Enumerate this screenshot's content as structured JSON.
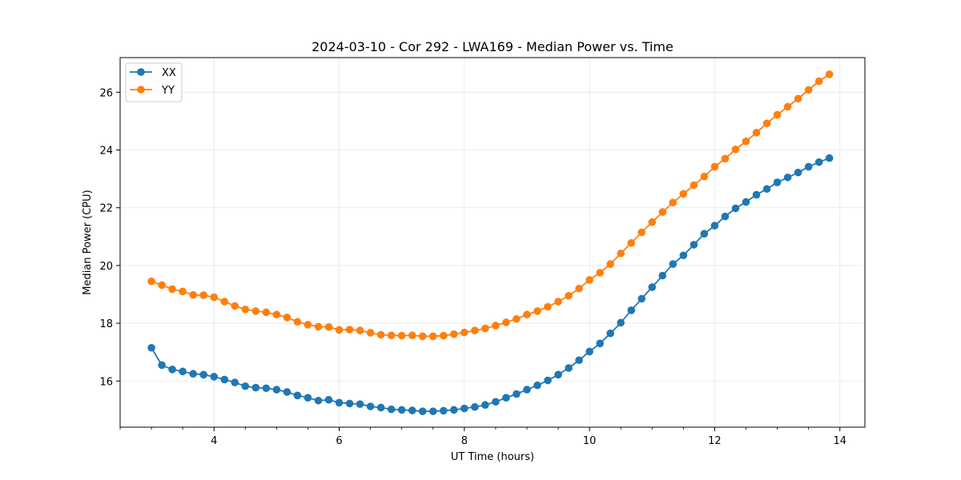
{
  "chart_data": {
    "type": "line",
    "title": "2024-03-10 - Cor 292 - LWA169 - Median Power vs. Time",
    "xlabel": "UT Time (hours)",
    "ylabel": "Median Power (CPU)",
    "xlim": [
      2.5,
      14.4
    ],
    "ylim": [
      14.4,
      27.2
    ],
    "xticks": [
      4,
      6,
      8,
      10,
      12,
      14
    ],
    "xtick_labels": [
      "4",
      "6",
      "8",
      "10",
      "12",
      "14"
    ],
    "xminor_step": 0.5,
    "yticks": [
      16,
      18,
      20,
      22,
      24,
      26
    ],
    "ytick_labels": [
      "16",
      "18",
      "20",
      "22",
      "24",
      "26"
    ],
    "grid": true,
    "legend_position": "top-left",
    "x": [
      3.0,
      3.167,
      3.333,
      3.5,
      3.667,
      3.833,
      4.0,
      4.167,
      4.333,
      4.5,
      4.667,
      4.833,
      5.0,
      5.167,
      5.333,
      5.5,
      5.667,
      5.833,
      6.0,
      6.167,
      6.333,
      6.5,
      6.667,
      6.833,
      7.0,
      7.167,
      7.333,
      7.5,
      7.667,
      7.833,
      8.0,
      8.167,
      8.333,
      8.5,
      8.667,
      8.833,
      9.0,
      9.167,
      9.333,
      9.5,
      9.667,
      9.833,
      10.0,
      10.167,
      10.333,
      10.5,
      10.667,
      10.833,
      11.0,
      11.167,
      11.333,
      11.5,
      11.667,
      11.833,
      12.0,
      12.167,
      12.333,
      12.5,
      12.667,
      12.833,
      13.0,
      13.167,
      13.333,
      13.5,
      13.667,
      13.833
    ],
    "series": [
      {
        "name": "XX",
        "color": "#1f77b4",
        "values": [
          17.15,
          16.55,
          16.4,
          16.33,
          16.25,
          16.22,
          16.15,
          16.05,
          15.95,
          15.82,
          15.77,
          15.75,
          15.7,
          15.62,
          15.5,
          15.42,
          15.32,
          15.35,
          15.25,
          15.22,
          15.2,
          15.12,
          15.08,
          15.02,
          15.0,
          14.98,
          14.95,
          14.95,
          14.97,
          15.0,
          15.05,
          15.1,
          15.17,
          15.28,
          15.42,
          15.55,
          15.7,
          15.85,
          16.02,
          16.22,
          16.45,
          16.72,
          17.02,
          17.3,
          17.65,
          18.02,
          18.45,
          18.85,
          19.25,
          19.65,
          20.05,
          20.35,
          20.72,
          21.1,
          21.38,
          21.7,
          21.98,
          22.2,
          22.45,
          22.65,
          22.88,
          23.05,
          23.22,
          23.42,
          23.58,
          23.72
        ]
      },
      {
        "name": "YY",
        "color": "#ff7f0e",
        "values": [
          19.45,
          19.32,
          19.18,
          19.1,
          18.98,
          18.97,
          18.9,
          18.75,
          18.6,
          18.48,
          18.42,
          18.38,
          18.3,
          18.2,
          18.05,
          17.95,
          17.88,
          17.87,
          17.77,
          17.78,
          17.75,
          17.67,
          17.6,
          17.58,
          17.57,
          17.58,
          17.55,
          17.55,
          17.57,
          17.62,
          17.68,
          17.75,
          17.82,
          17.92,
          18.03,
          18.15,
          18.3,
          18.42,
          18.57,
          18.75,
          18.95,
          19.2,
          19.5,
          19.75,
          20.05,
          20.42,
          20.78,
          21.15,
          21.5,
          21.85,
          22.18,
          22.48,
          22.78,
          23.08,
          23.42,
          23.7,
          24.02,
          24.3,
          24.6,
          24.92,
          25.22,
          25.5,
          25.78,
          26.08,
          26.38,
          26.62
        ]
      }
    ]
  }
}
